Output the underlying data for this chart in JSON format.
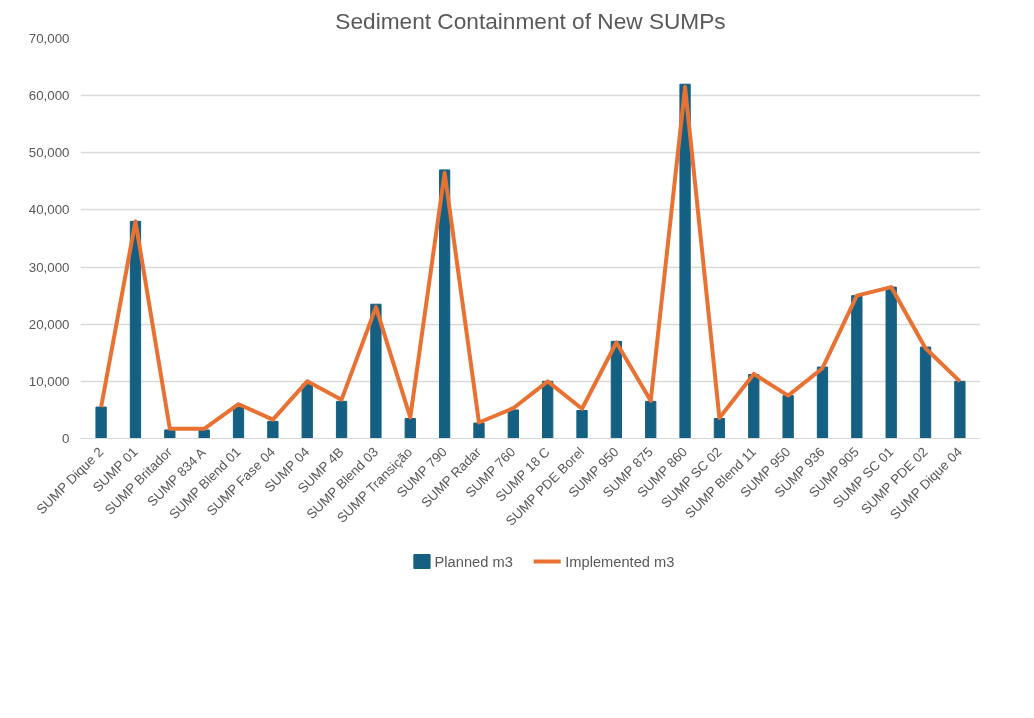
{
  "chart_data": {
    "type": "bar",
    "title": "Sediment Containment of New SUMPs",
    "categories": [
      "SUMP Dique 2",
      "SUMP 01",
      "SUMP Britador",
      "SUMP 834 A",
      "SUMP Blend 01",
      "SUMP Fase 04",
      "SUMP 04",
      "SUMP 4B",
      "SUMP Blend 03",
      "SUMP Transição",
      "SUMP 790",
      "SUMP Radar",
      "SUMP 760",
      "SUMP 18 C",
      "SUMP PDE Borel",
      "SUMP 950",
      "SUMP 875",
      "SUMP 860",
      "SUMP SC 02",
      "SUMP Blend 11",
      "SUMP 950",
      "SUMP 936",
      "SUMP 905",
      "SUMP SC 01",
      "SUMP PDE 02",
      "SUMP Dique 04"
    ],
    "series": [
      {
        "name": "Planned m3",
        "color": "#156082",
        "values": [
          5500,
          38000,
          1500,
          1500,
          5500,
          3000,
          9500,
          6500,
          23500,
          3500,
          47000,
          2700,
          5000,
          10000,
          4900,
          17000,
          6500,
          62000,
          3500,
          11200,
          7500,
          12500,
          25000,
          26500,
          16000,
          10000
        ]
      },
      {
        "name": "Implemented m3",
        "type": "line",
        "color": "#e97132",
        "values": [
          5500,
          38000,
          1700,
          1700,
          6000,
          3300,
          10000,
          6800,
          23000,
          3700,
          46500,
          2800,
          5300,
          10000,
          5200,
          16800,
          6600,
          61500,
          3600,
          11300,
          7500,
          12300,
          25000,
          26500,
          15800,
          10000
        ]
      }
    ],
    "ylim": [
      0,
      70000
    ],
    "yticks": [
      {
        "value": 0,
        "label": "0"
      },
      {
        "value": 10000,
        "label": "10,000"
      },
      {
        "value": 20000,
        "label": "20,000"
      },
      {
        "value": 30000,
        "label": "30,000"
      },
      {
        "value": 40000,
        "label": "40,000"
      },
      {
        "value": 50000,
        "label": "50,000"
      },
      {
        "value": 60000,
        "label": "60,000"
      },
      {
        "value": 70000,
        "label": "70,000"
      }
    ],
    "grid": "y",
    "legend": "bottom",
    "marker": "none",
    "line_style": "solid"
  }
}
